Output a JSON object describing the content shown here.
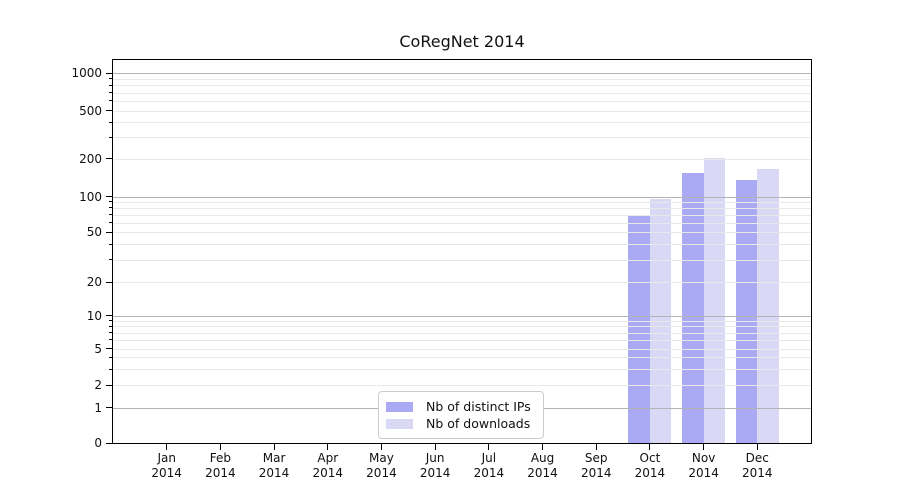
{
  "title": "CoRegNet 2014",
  "colors": {
    "ips": "#a9a9f4",
    "downloads": "#d9d9f6",
    "grid_major": "#b3b3b3",
    "grid_minor": "#e8e8e8",
    "axis": "#000000",
    "legend_border": "#cccccc"
  },
  "legend": {
    "items": [
      {
        "label": "Nb of distinct IPs",
        "color_key": "ips"
      },
      {
        "label": "Nb of downloads",
        "color_key": "downloads"
      }
    ]
  },
  "y_axis": {
    "tick_labels": [
      "0",
      "1",
      "2",
      "5",
      "10",
      "20",
      "50",
      "100",
      "200",
      "500",
      "1000"
    ]
  },
  "x_axis": {
    "year": "2014",
    "months": [
      "Jan",
      "Feb",
      "Mar",
      "Apr",
      "May",
      "Jun",
      "Jul",
      "Aug",
      "Sep",
      "Oct",
      "Nov",
      "Dec"
    ]
  },
  "chart_data": {
    "type": "bar",
    "title": "CoRegNet 2014",
    "categories": [
      "Jan 2014",
      "Feb 2014",
      "Mar 2014",
      "Apr 2014",
      "May 2014",
      "Jun 2014",
      "Jul 2014",
      "Aug 2014",
      "Sep 2014",
      "Oct 2014",
      "Nov 2014",
      "Dec 2014"
    ],
    "series": [
      {
        "name": "Nb of distinct IPs",
        "color": "#a9a9f4",
        "values": [
          0,
          0,
          0,
          0,
          0,
          0,
          0,
          0,
          0,
          70,
          155,
          135
        ]
      },
      {
        "name": "Nb of downloads",
        "color": "#d9d9f6",
        "values": [
          0,
          0,
          0,
          0,
          0,
          0,
          0,
          0,
          0,
          95,
          203,
          167
        ]
      }
    ],
    "yscale": "asinh (linear 0-1, log-like above)",
    "y_ticks": [
      0,
      1,
      2,
      5,
      10,
      20,
      50,
      100,
      200,
      500,
      1000
    ],
    "ylim": [
      0,
      1300
    ],
    "grid": "on, drawn over bars; darker lines at powers of 10",
    "legend_position": "lower center"
  }
}
